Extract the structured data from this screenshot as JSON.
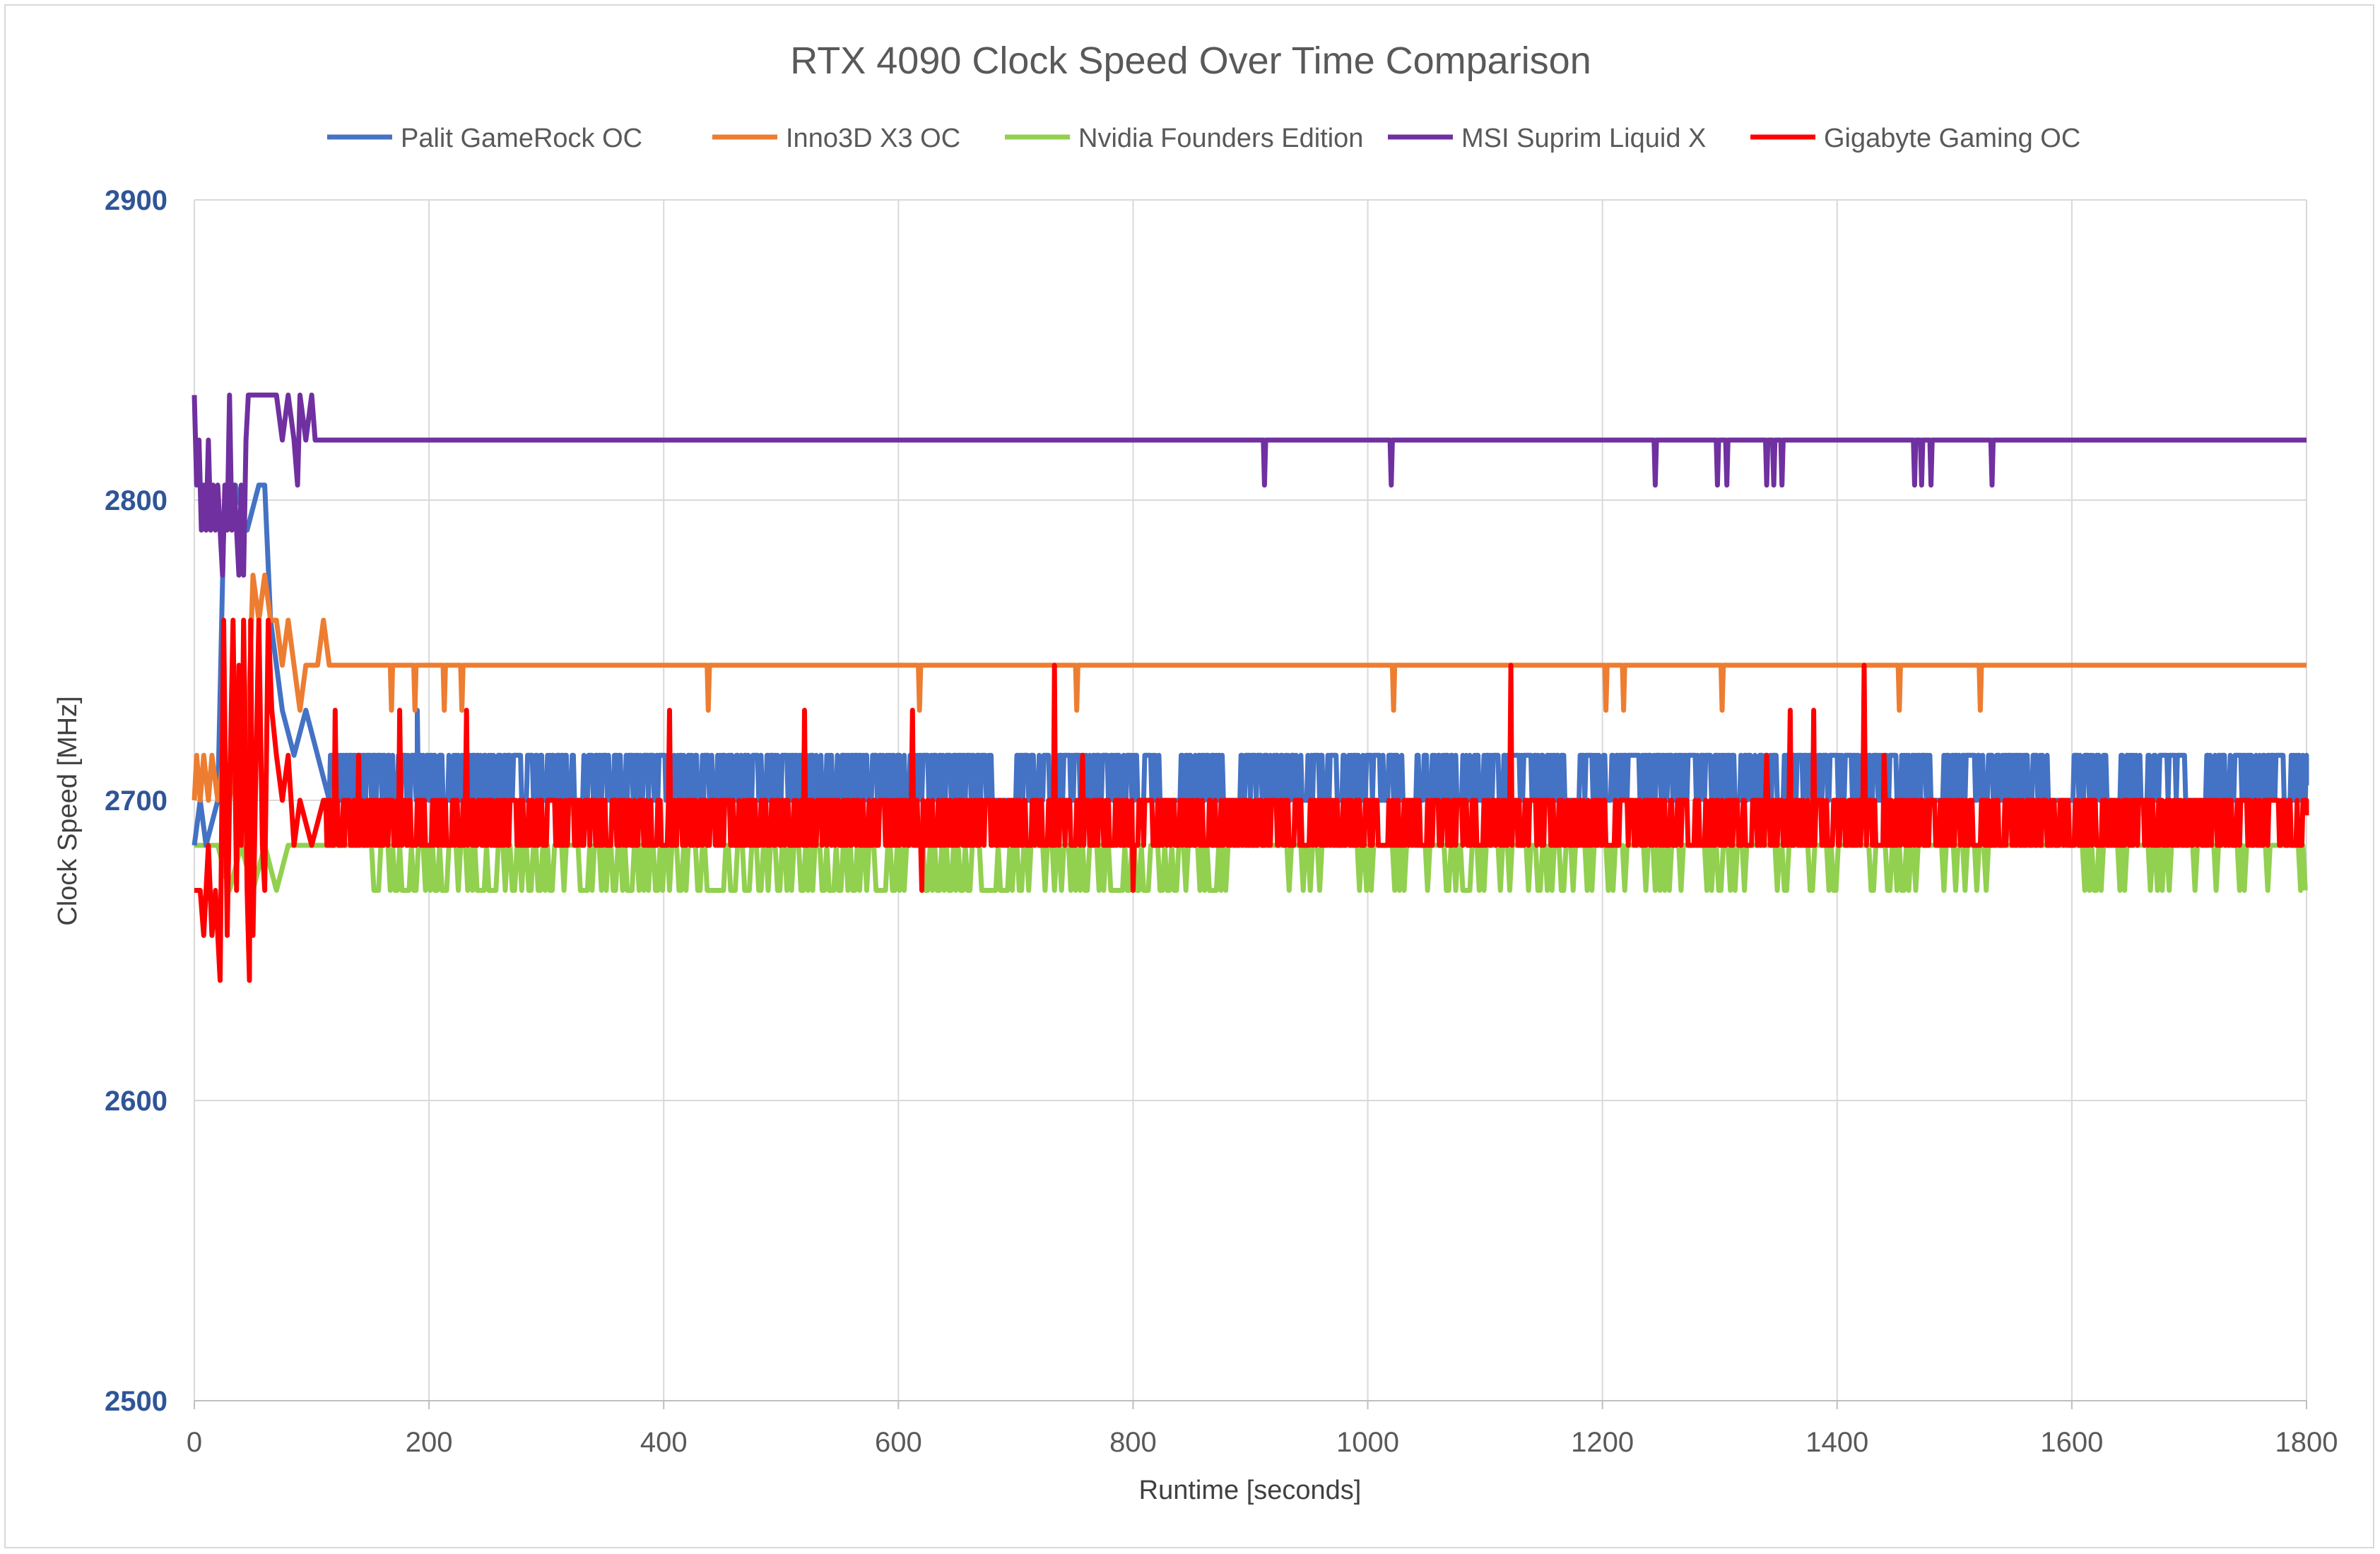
{
  "chart_data": {
    "type": "line",
    "title": "RTX 4090 Clock Speed Over Time Comparison",
    "xlabel": "Runtime [seconds]",
    "ylabel": "Clock Speed [MHz]",
    "xlim": [
      0,
      1800
    ],
    "ylim": [
      2500,
      2900
    ],
    "x_ticks": [
      0,
      200,
      400,
      600,
      800,
      1000,
      1200,
      1400,
      1600,
      1800
    ],
    "y_ticks": [
      2500,
      2600,
      2700,
      2800,
      2900
    ],
    "grid": true,
    "legend_position": "top",
    "colors": {
      "y_tick_labels": "#2f5597",
      "grid": "#d9d9d9",
      "text": "#595959"
    },
    "series": [
      {
        "name": "Palit GameRock OC",
        "color": "#4472c4",
        "base": 2700,
        "alt": 2715,
        "rate": 0.55,
        "period": 1,
        "seed": 11,
        "points": [
          [
            0,
            2685
          ],
          [
            5,
            2700
          ],
          [
            10,
            2685
          ],
          [
            20,
            2700
          ],
          [
            25,
            2790
          ],
          [
            35,
            2805
          ],
          [
            45,
            2790
          ],
          [
            55,
            2805
          ],
          [
            60,
            2805
          ],
          [
            65,
            2760
          ],
          [
            70,
            2745
          ],
          [
            75,
            2730
          ],
          [
            85,
            2715
          ],
          [
            95,
            2730
          ],
          [
            105,
            2715
          ],
          [
            115,
            2700
          ]
        ],
        "extra": [
          [
            190,
            2730
          ],
          [
            195,
            2700
          ]
        ],
        "gaps": [
          [
            680,
            700
          ],
          [
            830,
            840
          ],
          [
            880,
            890
          ],
          [
            1030,
            1040
          ],
          [
            1170,
            1180
          ],
          [
            1480,
            1490
          ],
          [
            1580,
            1600
          ],
          [
            1630,
            1640
          ],
          [
            1700,
            1710
          ]
        ],
        "end": [
          [
            1800,
            2705
          ]
        ]
      },
      {
        "name": "Inno3D X3 OC",
        "color": "#ed7d31",
        "base": 2745,
        "alt": 2745,
        "rate": 0,
        "period": 1,
        "seed": 12,
        "points": [
          [
            0,
            2700
          ],
          [
            2,
            2715
          ],
          [
            5,
            2700
          ],
          [
            8,
            2715
          ],
          [
            12,
            2700
          ],
          [
            15,
            2715
          ],
          [
            20,
            2700
          ],
          [
            25,
            2715
          ],
          [
            30,
            2700
          ],
          [
            35,
            2715
          ],
          [
            40,
            2700
          ],
          [
            45,
            2715
          ],
          [
            50,
            2775
          ],
          [
            55,
            2760
          ],
          [
            60,
            2775
          ],
          [
            65,
            2760
          ],
          [
            70,
            2760
          ],
          [
            75,
            2745
          ],
          [
            80,
            2760
          ],
          [
            85,
            2745
          ],
          [
            90,
            2730
          ],
          [
            95,
            2745
          ],
          [
            105,
            2745
          ],
          [
            110,
            2760
          ],
          [
            115,
            2745
          ]
        ],
        "dips": [
          [
            168,
            2730
          ],
          [
            188,
            2730
          ],
          [
            213,
            2730
          ],
          [
            228,
            2730
          ],
          [
            438,
            2730
          ],
          [
            618,
            2730
          ],
          [
            752,
            2730
          ],
          [
            1022,
            2730
          ],
          [
            1203,
            2730
          ],
          [
            1218,
            2730
          ],
          [
            1302,
            2730
          ],
          [
            1453,
            2730
          ],
          [
            1522,
            2730
          ]
        ]
      },
      {
        "name": "Nvidia Founders Edition",
        "color": "#92d050",
        "base": 2685,
        "alt": 2670,
        "rate": 0.45,
        "period": 2,
        "seed": 13,
        "points": [
          [
            0,
            2685
          ],
          [
            20,
            2685
          ],
          [
            30,
            2670
          ],
          [
            40,
            2685
          ],
          [
            50,
            2670
          ],
          [
            60,
            2685
          ],
          [
            70,
            2670
          ],
          [
            80,
            2685
          ],
          [
            150,
            2685
          ]
        ],
        "gaps": [
          [
            880,
            930
          ],
          [
            1300,
            1320
          ],
          [
            1470,
            1490
          ],
          [
            1560,
            1580
          ]
        ],
        "sparse_after": 940,
        "sparse_rate": 0.2
      },
      {
        "name": "MSI Suprim Liquid X",
        "color": "#7030a0",
        "base": 2820,
        "alt": 2820,
        "rate": 0,
        "period": 1,
        "seed": 14,
        "points": [
          [
            0,
            2835
          ],
          [
            2,
            2805
          ],
          [
            4,
            2820
          ],
          [
            6,
            2790
          ],
          [
            8,
            2805
          ],
          [
            10,
            2790
          ],
          [
            12,
            2820
          ],
          [
            14,
            2790
          ],
          [
            16,
            2805
          ],
          [
            18,
            2790
          ],
          [
            20,
            2805
          ],
          [
            22,
            2790
          ],
          [
            24,
            2775
          ],
          [
            26,
            2805
          ],
          [
            28,
            2790
          ],
          [
            30,
            2835
          ],
          [
            32,
            2790
          ],
          [
            34,
            2805
          ],
          [
            36,
            2790
          ],
          [
            38,
            2775
          ],
          [
            40,
            2805
          ],
          [
            42,
            2775
          ],
          [
            44,
            2820
          ],
          [
            46,
            2835
          ],
          [
            50,
            2835
          ],
          [
            60,
            2835
          ],
          [
            70,
            2835
          ],
          [
            75,
            2820
          ],
          [
            80,
            2835
          ],
          [
            85,
            2820
          ],
          [
            88,
            2805
          ],
          [
            90,
            2835
          ],
          [
            95,
            2820
          ],
          [
            100,
            2835
          ],
          [
            103,
            2820
          ]
        ],
        "dips": [
          [
            912,
            2805
          ],
          [
            1020,
            2805
          ],
          [
            1245,
            2805
          ],
          [
            1298,
            2805
          ],
          [
            1306,
            2805
          ],
          [
            1340,
            2805
          ],
          [
            1346,
            2805
          ],
          [
            1353,
            2805
          ],
          [
            1466,
            2805
          ],
          [
            1472,
            2805
          ],
          [
            1480,
            2805
          ],
          [
            1532,
            2805
          ]
        ]
      },
      {
        "name": "Gigabyte Gaming OC",
        "color": "#ff0000",
        "base": 2700,
        "alt": 2685,
        "rate": 0.5,
        "period": 1,
        "seed": 15,
        "points": [
          [
            0,
            2670
          ],
          [
            5,
            2670
          ],
          [
            8,
            2655
          ],
          [
            12,
            2685
          ],
          [
            15,
            2655
          ],
          [
            18,
            2670
          ],
          [
            22,
            2640
          ],
          [
            25,
            2760
          ],
          [
            28,
            2655
          ],
          [
            30,
            2700
          ],
          [
            33,
            2760
          ],
          [
            36,
            2670
          ],
          [
            38,
            2745
          ],
          [
            40,
            2685
          ],
          [
            42,
            2760
          ],
          [
            45,
            2670
          ],
          [
            47,
            2640
          ],
          [
            48,
            2760
          ],
          [
            50,
            2655
          ],
          [
            52,
            2700
          ],
          [
            55,
            2760
          ],
          [
            58,
            2685
          ],
          [
            60,
            2670
          ],
          [
            63,
            2760
          ],
          [
            66,
            2730
          ],
          [
            70,
            2715
          ],
          [
            75,
            2700
          ],
          [
            80,
            2715
          ],
          [
            85,
            2685
          ],
          [
            90,
            2700
          ],
          [
            100,
            2685
          ],
          [
            110,
            2700
          ]
        ],
        "spikes": [
          [
            120,
            2730
          ],
          [
            140,
            2715
          ],
          [
            175,
            2730
          ],
          [
            232,
            2730
          ],
          [
            405,
            2730
          ],
          [
            520,
            2730
          ],
          [
            612,
            2730
          ],
          [
            733,
            2745
          ],
          [
            757,
            2715
          ],
          [
            1122,
            2745
          ],
          [
            1340,
            2715
          ],
          [
            1360,
            2730
          ],
          [
            1380,
            2730
          ],
          [
            1423,
            2745
          ],
          [
            1440,
            2715
          ]
        ],
        "drops": [
          [
            620,
            2670
          ],
          [
            800,
            2670
          ],
          [
            1010,
            2685
          ],
          [
            1540,
            2685
          ],
          [
            1680,
            2685
          ]
        ],
        "end": [
          [
            1800,
            2695
          ]
        ]
      }
    ]
  }
}
